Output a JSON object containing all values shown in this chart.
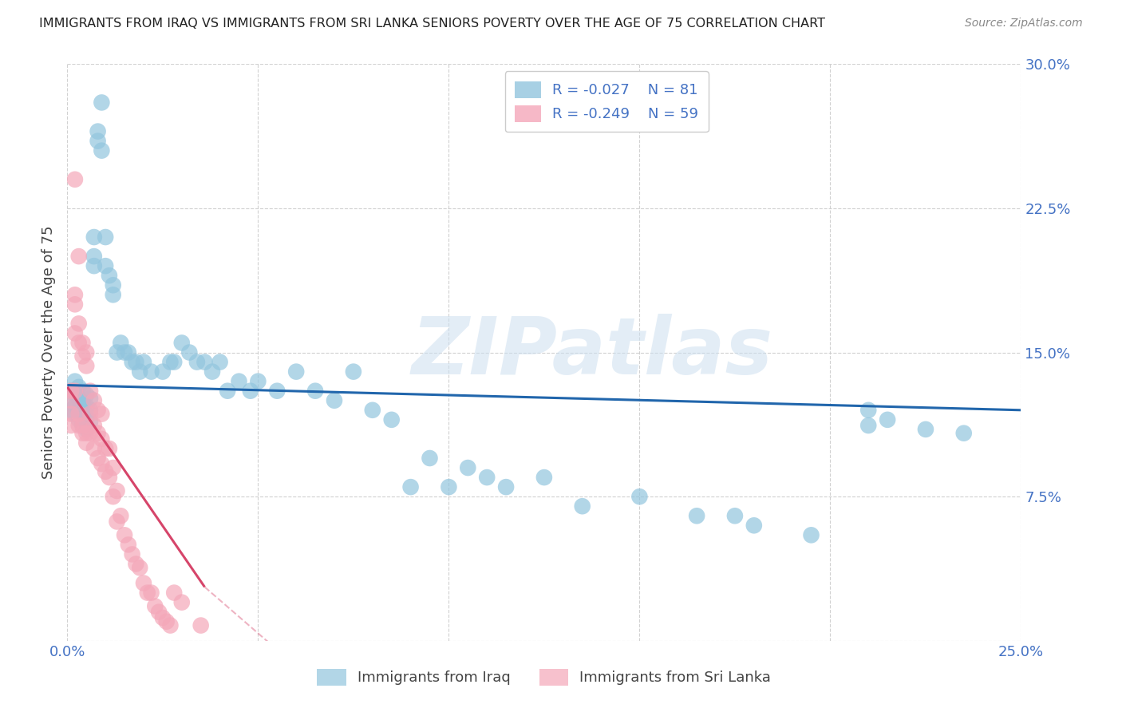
{
  "title": "IMMIGRANTS FROM IRAQ VS IMMIGRANTS FROM SRI LANKA SENIORS POVERTY OVER THE AGE OF 75 CORRELATION CHART",
  "source": "Source: ZipAtlas.com",
  "ylabel": "Seniors Poverty Over the Age of 75",
  "xlim": [
    0.0,
    0.25
  ],
  "ylim": [
    0.0,
    0.3
  ],
  "R_iraq": -0.027,
  "N_iraq": 81,
  "R_sri_lanka": -0.249,
  "N_sri_lanka": 59,
  "legend_label_iraq": "Immigrants from Iraq",
  "legend_label_sri_lanka": "Immigrants from Sri Lanka",
  "watermark": "ZIPatlas",
  "title_color": "#222222",
  "axis_label_color": "#444444",
  "tick_label_color": "#4472c4",
  "grid_color": "#cccccc",
  "background_color": "#ffffff",
  "iraq_color": "#92c5de",
  "sri_lanka_color": "#f4a7b9",
  "iraq_line_color": "#2166ac",
  "sri_lanka_line_color": "#d6456a",
  "iraq_x": [
    0.001,
    0.001,
    0.001,
    0.002,
    0.002,
    0.002,
    0.002,
    0.003,
    0.003,
    0.003,
    0.003,
    0.004,
    0.004,
    0.004,
    0.004,
    0.005,
    0.005,
    0.005,
    0.005,
    0.006,
    0.006,
    0.006,
    0.007,
    0.007,
    0.007,
    0.008,
    0.008,
    0.009,
    0.009,
    0.01,
    0.01,
    0.011,
    0.012,
    0.012,
    0.013,
    0.014,
    0.015,
    0.016,
    0.017,
    0.018,
    0.019,
    0.02,
    0.022,
    0.025,
    0.027,
    0.028,
    0.03,
    0.032,
    0.034,
    0.036,
    0.038,
    0.04,
    0.042,
    0.045,
    0.048,
    0.05,
    0.055,
    0.06,
    0.065,
    0.07,
    0.075,
    0.08,
    0.085,
    0.09,
    0.095,
    0.1,
    0.105,
    0.11,
    0.115,
    0.125,
    0.135,
    0.15,
    0.165,
    0.175,
    0.18,
    0.195,
    0.21,
    0.215,
    0.225,
    0.235,
    0.21
  ],
  "iraq_y": [
    0.13,
    0.125,
    0.12,
    0.135,
    0.128,
    0.122,
    0.118,
    0.132,
    0.126,
    0.12,
    0.115,
    0.13,
    0.124,
    0.118,
    0.112,
    0.128,
    0.122,
    0.116,
    0.11,
    0.126,
    0.12,
    0.114,
    0.2,
    0.195,
    0.21,
    0.265,
    0.26,
    0.28,
    0.255,
    0.195,
    0.21,
    0.19,
    0.185,
    0.18,
    0.15,
    0.155,
    0.15,
    0.15,
    0.145,
    0.145,
    0.14,
    0.145,
    0.14,
    0.14,
    0.145,
    0.145,
    0.155,
    0.15,
    0.145,
    0.145,
    0.14,
    0.145,
    0.13,
    0.135,
    0.13,
    0.135,
    0.13,
    0.14,
    0.13,
    0.125,
    0.14,
    0.12,
    0.115,
    0.08,
    0.095,
    0.08,
    0.09,
    0.085,
    0.08,
    0.085,
    0.07,
    0.075,
    0.065,
    0.065,
    0.06,
    0.055,
    0.12,
    0.115,
    0.11,
    0.108,
    0.112
  ],
  "sri_lanka_x": [
    0.001,
    0.001,
    0.001,
    0.001,
    0.002,
    0.002,
    0.002,
    0.002,
    0.002,
    0.003,
    0.003,
    0.003,
    0.003,
    0.003,
    0.004,
    0.004,
    0.004,
    0.004,
    0.005,
    0.005,
    0.005,
    0.005,
    0.006,
    0.006,
    0.006,
    0.007,
    0.007,
    0.007,
    0.008,
    0.008,
    0.008,
    0.009,
    0.009,
    0.009,
    0.01,
    0.01,
    0.011,
    0.011,
    0.012,
    0.012,
    0.013,
    0.013,
    0.014,
    0.015,
    0.016,
    0.017,
    0.018,
    0.019,
    0.02,
    0.021,
    0.022,
    0.023,
    0.024,
    0.025,
    0.026,
    0.027,
    0.028,
    0.03,
    0.035
  ],
  "sri_lanka_y": [
    0.13,
    0.125,
    0.118,
    0.112,
    0.24,
    0.18,
    0.175,
    0.16,
    0.13,
    0.2,
    0.165,
    0.155,
    0.118,
    0.112,
    0.155,
    0.148,
    0.112,
    0.108,
    0.15,
    0.143,
    0.108,
    0.103,
    0.13,
    0.118,
    0.108,
    0.125,
    0.112,
    0.1,
    0.12,
    0.108,
    0.095,
    0.118,
    0.105,
    0.092,
    0.1,
    0.088,
    0.1,
    0.085,
    0.09,
    0.075,
    0.078,
    0.062,
    0.065,
    0.055,
    0.05,
    0.045,
    0.04,
    0.038,
    0.03,
    0.025,
    0.025,
    0.018,
    0.015,
    0.012,
    0.01,
    0.008,
    0.025,
    0.02,
    0.008
  ],
  "iraq_line_x": [
    0.0,
    0.25
  ],
  "iraq_line_y": [
    0.133,
    0.12
  ],
  "sri_lanka_line_x": [
    0.0,
    0.036
  ],
  "sri_lanka_line_y": [
    0.132,
    0.028
  ]
}
